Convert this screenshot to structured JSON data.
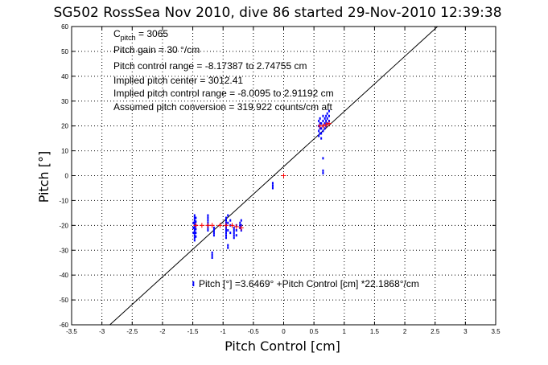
{
  "chart_data": {
    "type": "scatter",
    "title": "SG502 RossSea Nov 2010, dive 86 started 29-Nov-2010 12:39:38",
    "xlabel": "Pitch Control [cm]",
    "ylabel": "Pitch [°]",
    "xlim": [
      -3.5,
      3.5
    ],
    "ylim": [
      -60,
      60
    ],
    "xticks": [
      -3.5,
      -3,
      -2.5,
      -2,
      -1.5,
      -1,
      -0.5,
      0,
      0.5,
      1,
      1.5,
      2,
      2.5,
      3,
      3.5
    ],
    "xtick_labels": [
      "-3.5",
      "-3",
      "-2.5",
      "-2",
      "-1.5",
      "-1",
      "-0.5",
      "0",
      "0.5",
      "1",
      "1.5",
      "2",
      "2.5",
      "3",
      "3.5"
    ],
    "yticks": [
      60,
      50,
      40,
      30,
      20,
      10,
      0,
      -10,
      -20,
      -30,
      -40,
      -50,
      -60
    ],
    "ytick_labels": [
      "60",
      "50",
      "40",
      "30",
      "20",
      "10",
      "0",
      "-10",
      "-20",
      "-30",
      "-40",
      "-50",
      "-60"
    ],
    "grid": true,
    "annotations": {
      "c_pitch_main": "C",
      "c_pitch_sub": "pitch",
      "c_pitch_value": " = 3065",
      "pitch_gain": "Pitch gain = 30 °/cm",
      "control_range": "Pitch control range = -8.17387 to 2.74755 cm",
      "implied_center": "Implied pitch center = 3012.41",
      "implied_range": "Implied pitch control range = -8.0095 to 2.91192 cm",
      "conversion": "Assumed pitch conversion = 319.922 counts/cm aft",
      "fit_equation": "Pitch [°] =3.6469° +Pitch Control [cm] *22.1868°/cm"
    },
    "fit": {
      "intercept": 3.6469,
      "slope": 22.1868
    },
    "colors": {
      "observed": "#0000ff",
      "fitted": "#ff0000",
      "fit_line": "#000000",
      "grid": "#000000"
    },
    "series": [
      {
        "marker": "dot",
        "color": "#0000ff",
        "points": [
          [
            -1.47,
            -16
          ],
          [
            -1.47,
            -17
          ],
          [
            -1.47,
            -18
          ],
          [
            -1.47,
            -19
          ],
          [
            -1.47,
            -20
          ],
          [
            -1.47,
            -21
          ],
          [
            -1.47,
            -22
          ],
          [
            -1.47,
            -23
          ],
          [
            -1.47,
            -24
          ],
          [
            -1.47,
            -25
          ],
          [
            -1.47,
            -26
          ],
          [
            -1.45,
            -17
          ],
          [
            -1.45,
            -18.5
          ],
          [
            -1.45,
            -20
          ],
          [
            -1.45,
            -21.5
          ],
          [
            -1.45,
            -23
          ],
          [
            -1.45,
            -24.5
          ],
          [
            -1.49,
            -19
          ],
          [
            -1.49,
            -21
          ],
          [
            -1.49,
            -23
          ],
          [
            -1.49,
            -43
          ],
          [
            -1.49,
            -44
          ],
          [
            -1.25,
            -16
          ],
          [
            -1.25,
            -17
          ],
          [
            -1.25,
            -18
          ],
          [
            -1.25,
            -19
          ],
          [
            -1.25,
            -20
          ],
          [
            -1.25,
            -21
          ],
          [
            -1.25,
            -22
          ],
          [
            -1.18,
            -31
          ],
          [
            -1.18,
            -32
          ],
          [
            -1.18,
            -33
          ],
          [
            -1.15,
            -21
          ],
          [
            -1.15,
            -22
          ],
          [
            -1.15,
            -23
          ],
          [
            -1.15,
            -24
          ],
          [
            -0.95,
            -17
          ],
          [
            -0.95,
            -18
          ],
          [
            -0.95,
            -19
          ],
          [
            -0.95,
            -20
          ],
          [
            -0.95,
            -21
          ],
          [
            -0.95,
            -22
          ],
          [
            -0.95,
            -23
          ],
          [
            -0.95,
            -24
          ],
          [
            -0.95,
            -25
          ],
          [
            -0.92,
            -16
          ],
          [
            -0.92,
            -19
          ],
          [
            -0.92,
            -22
          ],
          [
            -0.92,
            -28
          ],
          [
            -0.92,
            -29
          ],
          [
            -0.88,
            -18
          ],
          [
            -0.88,
            -20
          ],
          [
            -0.88,
            -23
          ],
          [
            -0.82,
            -21
          ],
          [
            -0.82,
            -22
          ],
          [
            -0.82,
            -23
          ],
          [
            -0.82,
            -24
          ],
          [
            -0.82,
            -25
          ],
          [
            -0.78,
            -20
          ],
          [
            -0.78,
            -22
          ],
          [
            -0.78,
            -24
          ],
          [
            -0.72,
            -19
          ],
          [
            -0.72,
            -20
          ],
          [
            -0.72,
            -21
          ],
          [
            -0.7,
            -18
          ],
          [
            -0.7,
            -20
          ],
          [
            -0.7,
            -22
          ],
          [
            -0.18,
            -3
          ],
          [
            -0.18,
            -4
          ],
          [
            -0.18,
            -5
          ],
          [
            0.58,
            16
          ],
          [
            0.58,
            18
          ],
          [
            0.58,
            20
          ],
          [
            0.58,
            22
          ],
          [
            0.6,
            17
          ],
          [
            0.6,
            19
          ],
          [
            0.6,
            21
          ],
          [
            0.6,
            23
          ],
          [
            0.62,
            15
          ],
          [
            0.62,
            17
          ],
          [
            0.62,
            19
          ],
          [
            0.62,
            21
          ],
          [
            0.65,
            18
          ],
          [
            0.65,
            20
          ],
          [
            0.65,
            22
          ],
          [
            0.65,
            24
          ],
          [
            0.65,
            7
          ],
          [
            0.65,
            2
          ],
          [
            0.65,
            1
          ],
          [
            0.68,
            19
          ],
          [
            0.68,
            21
          ],
          [
            0.68,
            23
          ],
          [
            0.7,
            20
          ],
          [
            0.7,
            22
          ],
          [
            0.7,
            24
          ],
          [
            0.72,
            21
          ],
          [
            0.72,
            23
          ],
          [
            0.72,
            25
          ],
          [
            0.75,
            22
          ],
          [
            0.75,
            24
          ],
          [
            0.75,
            26
          ]
        ]
      },
      {
        "marker": "plus",
        "color": "#ff0000",
        "points": [
          [
            -1.45,
            -20
          ],
          [
            -1.35,
            -20
          ],
          [
            -1.25,
            -20
          ],
          [
            -1.18,
            -20
          ],
          [
            -1.05,
            -20
          ],
          [
            -0.95,
            -20
          ],
          [
            -0.85,
            -20
          ],
          [
            -0.78,
            -20.5
          ],
          [
            -0.7,
            -21
          ],
          [
            0.0,
            0
          ],
          [
            0.6,
            20
          ],
          [
            0.65,
            20
          ],
          [
            0.7,
            20.5
          ],
          [
            0.75,
            21
          ]
        ]
      }
    ]
  }
}
